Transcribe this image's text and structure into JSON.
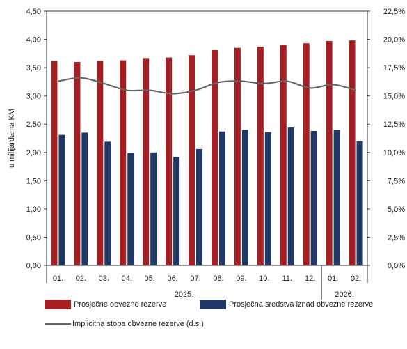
{
  "chart_data": {
    "type": "bar",
    "categories": [
      "01.",
      "02.",
      "03.",
      "04.",
      "05.",
      "06.",
      "07.",
      "08.",
      "09.",
      "10.",
      "11.",
      "12.",
      "01.",
      "02."
    ],
    "year_groups": [
      {
        "label": "2025.",
        "start": 0,
        "end": 11
      },
      {
        "label": "2026.",
        "start": 12,
        "end": 13
      }
    ],
    "series": [
      {
        "name": "Prosječne obvezne rezerve",
        "type": "bar",
        "axis": "left",
        "color": "#a31f24",
        "values": [
          3.62,
          3.6,
          3.62,
          3.63,
          3.67,
          3.68,
          3.72,
          3.81,
          3.85,
          3.87,
          3.9,
          3.93,
          3.97,
          3.98
        ]
      },
      {
        "name": "Prosječna sredstva iznad obvezne rezerve",
        "type": "bar",
        "axis": "left",
        "color": "#1f3864",
        "values": [
          2.31,
          2.35,
          2.19,
          1.99,
          2.0,
          1.92,
          2.06,
          2.37,
          2.4,
          2.36,
          2.44,
          2.38,
          2.4,
          2.2
        ]
      },
      {
        "name": "Implicitna stopa obvezne rezerve (d.s.)",
        "type": "line",
        "axis": "right",
        "color": "#666666",
        "values": [
          16.3,
          16.6,
          16.1,
          15.5,
          15.5,
          15.2,
          15.5,
          16.2,
          16.3,
          16.1,
          16.3,
          15.7,
          16.0,
          15.5
        ]
      }
    ],
    "ylabel": "u milijardama KM",
    "ylim": [
      0,
      4.5
    ],
    "yticks": [
      "0,00",
      "0,50",
      "1,00",
      "1,50",
      "2,00",
      "2,50",
      "3,00",
      "3,50",
      "4,00",
      "4,50"
    ],
    "y2lim": [
      0,
      22.5
    ],
    "y2ticks": [
      "0,0%",
      "2,5%",
      "5,0%",
      "7,5%",
      "10,0%",
      "12,5%",
      "15,0%",
      "17,5%",
      "20,0%",
      "22,5%"
    ],
    "grid": false,
    "legend_position": "bottom"
  }
}
